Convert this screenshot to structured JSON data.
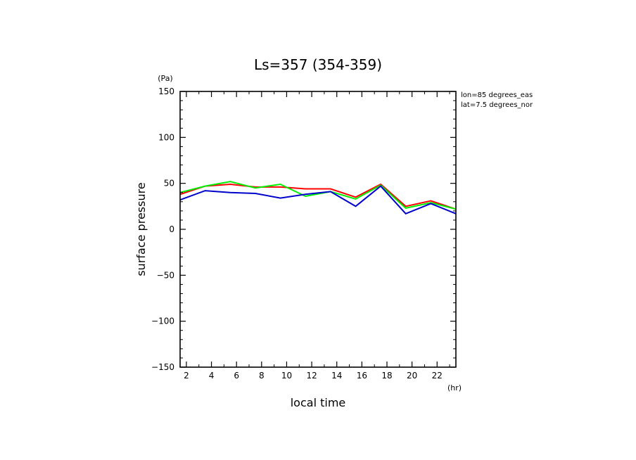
{
  "chart_data": {
    "type": "line",
    "title": "Ls=357 (354-359)",
    "xlabel": "local time",
    "ylabel": "surface pressure",
    "x_unit": "(hr)",
    "y_unit": "(Pa)",
    "xlim": [
      1.5,
      23.5
    ],
    "ylim": [
      -150,
      150
    ],
    "x_ticks": [
      2,
      4,
      6,
      8,
      10,
      12,
      14,
      16,
      18,
      20,
      22
    ],
    "x_tick_labels": [
      "2",
      "4",
      "6",
      "8",
      "10",
      "12",
      "14",
      "16",
      "18",
      "20",
      "22"
    ],
    "y_ticks": [
      -150,
      -100,
      -50,
      0,
      50,
      100,
      150
    ],
    "y_tick_labels": [
      "−150",
      "−100",
      "−50",
      "0",
      "50",
      "100",
      "150"
    ],
    "annotations": [
      "lon=85 degrees_eas",
      "lat=7.5 degrees_nor"
    ],
    "grid": false,
    "x": [
      1.5,
      3.5,
      5.5,
      7.5,
      9.5,
      11.5,
      13.5,
      15.5,
      17.5,
      19.5,
      21.5,
      23.5
    ],
    "series": [
      {
        "color": "#ff0000",
        "values": [
          38,
          47,
          49,
          46,
          46,
          44,
          44,
          35,
          49,
          25,
          31,
          22
        ]
      },
      {
        "color": "#00ee00",
        "values": [
          40,
          47,
          52,
          45,
          49,
          36,
          41,
          33,
          48,
          23,
          29,
          22
        ]
      },
      {
        "color": "#0000cc",
        "values": [
          32,
          42,
          40,
          39,
          34,
          38,
          41,
          25,
          47,
          17,
          28,
          17
        ]
      }
    ]
  }
}
